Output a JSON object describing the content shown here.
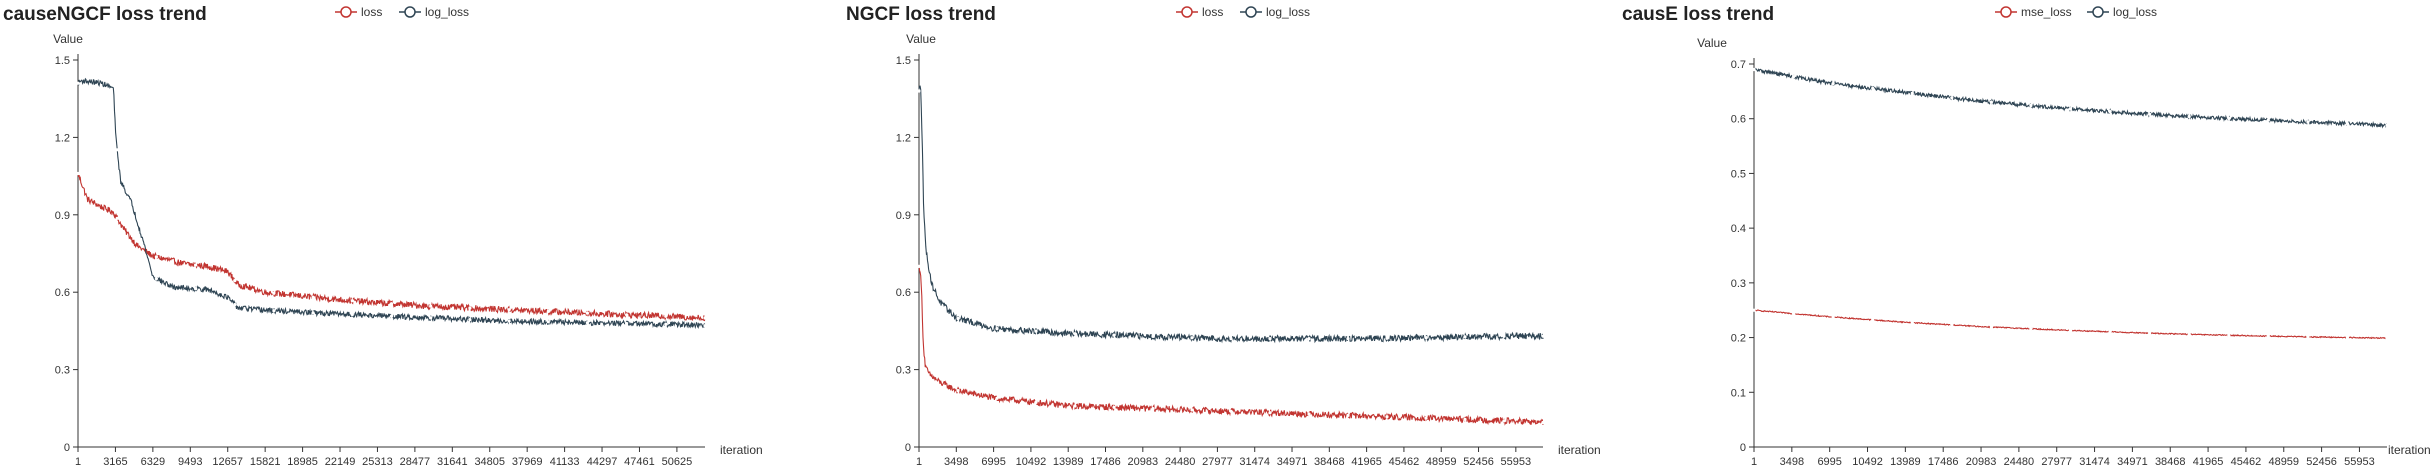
{
  "colors": {
    "red": "#c23531",
    "navy": "#2f4554",
    "axis": "#333333"
  },
  "chart_data": [
    {
      "type": "line",
      "title": "causeNGCF loss trend",
      "ylabel": "Value",
      "xlabel": "iteration",
      "ylim": [
        0,
        1.5
      ],
      "yticks": [
        "0",
        "0.3",
        "0.6",
        "0.9",
        "1.2",
        "1.5"
      ],
      "xmax": 53000,
      "x_tick_labels": [
        "1",
        "3165",
        "6329",
        "9493",
        "12657",
        "15821",
        "18985",
        "22149",
        "25313",
        "28477",
        "31641",
        "34805",
        "37969",
        "41133",
        "44297",
        "47461",
        "50625"
      ],
      "x_tick_step": 3164,
      "legend": [
        "loss",
        "log_loss"
      ],
      "series": [
        {
          "name": "loss",
          "color": "red",
          "noise": 0.012,
          "x": [
            1,
            800,
            2000,
            3000,
            3800,
            5000,
            6329,
            9000,
            11000,
            12657,
            13500,
            15821,
            20000,
            25000,
            30000,
            35000,
            40000,
            45000,
            50625,
            53000
          ],
          "y": [
            1.06,
            0.96,
            0.93,
            0.91,
            0.85,
            0.78,
            0.74,
            0.71,
            0.7,
            0.68,
            0.63,
            0.6,
            0.58,
            0.56,
            0.545,
            0.535,
            0.525,
            0.515,
            0.505,
            0.5
          ]
        },
        {
          "name": "log_loss",
          "color": "navy",
          "noise": 0.01,
          "x": [
            1,
            300,
            2000,
            3000,
            3200,
            3600,
            4500,
            5500,
            6329,
            8000,
            11000,
            12657,
            13500,
            15821,
            20000,
            25000,
            30000,
            35000,
            40000,
            45000,
            50625,
            53000
          ],
          "y": [
            1.41,
            1.42,
            1.41,
            1.39,
            1.2,
            1.03,
            0.95,
            0.8,
            0.66,
            0.62,
            0.61,
            0.58,
            0.54,
            0.53,
            0.52,
            0.51,
            0.5,
            0.49,
            0.485,
            0.48,
            0.475,
            0.47
          ]
        }
      ]
    },
    {
      "type": "line",
      "title": "NGCF loss trend",
      "ylabel": "Value",
      "xlabel": "iteration",
      "ylim": [
        0,
        1.5
      ],
      "yticks": [
        "0",
        "0.3",
        "0.6",
        "0.9",
        "1.2",
        "1.5"
      ],
      "xmax": 58500,
      "x_tick_labels": [
        "1",
        "3498",
        "6995",
        "10492",
        "13989",
        "17486",
        "20983",
        "24480",
        "27977",
        "31474",
        "34971",
        "38468",
        "41965",
        "45462",
        "48959",
        "52456",
        "55953"
      ],
      "x_tick_step": 3497,
      "legend": [
        "loss",
        "log_loss"
      ],
      "series": [
        {
          "name": "loss",
          "color": "red",
          "noise": 0.012,
          "x": [
            1,
            100,
            250,
            400,
            600,
            1000,
            2000,
            3500,
            7000,
            14000,
            21000,
            28000,
            35000,
            42000,
            49000,
            56000,
            58500
          ],
          "y": [
            0.7,
            0.69,
            0.6,
            0.4,
            0.31,
            0.28,
            0.25,
            0.22,
            0.19,
            0.16,
            0.15,
            0.14,
            0.13,
            0.12,
            0.11,
            0.1,
            0.095
          ]
        },
        {
          "name": "log_loss",
          "color": "navy",
          "noise": 0.012,
          "x": [
            1,
            150,
            300,
            450,
            700,
            1200,
            2000,
            3500,
            7000,
            14000,
            21000,
            28000,
            35000,
            42000,
            49000,
            56000,
            58500
          ],
          "y": [
            1.38,
            1.41,
            1.2,
            0.9,
            0.75,
            0.63,
            0.56,
            0.5,
            0.46,
            0.44,
            0.43,
            0.42,
            0.42,
            0.42,
            0.425,
            0.43,
            0.43
          ]
        }
      ]
    },
    {
      "type": "line",
      "title": "causE loss trend",
      "ylabel": "Value",
      "xlabel": "iteration",
      "ylim": [
        0,
        0.7
      ],
      "yticks": [
        "0",
        "0.1",
        "0.2",
        "0.3",
        "0.4",
        "0.5",
        "0.6",
        "0.7"
      ],
      "xmax": 58500,
      "x_tick_labels": [
        "1",
        "3498",
        "6995",
        "10492",
        "13989",
        "17486",
        "20983",
        "24480",
        "27977",
        "31474",
        "34971",
        "38468",
        "41965",
        "45462",
        "48959",
        "52456",
        "55953"
      ],
      "x_tick_step": 3497,
      "legend": [
        "mse_loss",
        "log_loss"
      ],
      "series": [
        {
          "name": "mse_loss",
          "color": "red",
          "noise": 0.002,
          "x": [
            1,
            7000,
            14000,
            21000,
            28000,
            35000,
            42000,
            49000,
            58500
          ],
          "y": [
            0.25,
            0.238,
            0.228,
            0.22,
            0.214,
            0.209,
            0.205,
            0.202,
            0.199
          ]
        },
        {
          "name": "log_loss",
          "color": "navy",
          "noise": 0.007,
          "x": [
            1,
            7000,
            14000,
            21000,
            28000,
            35000,
            42000,
            49000,
            58500
          ],
          "y": [
            0.69,
            0.665,
            0.648,
            0.632,
            0.62,
            0.61,
            0.602,
            0.596,
            0.588
          ]
        }
      ]
    }
  ]
}
